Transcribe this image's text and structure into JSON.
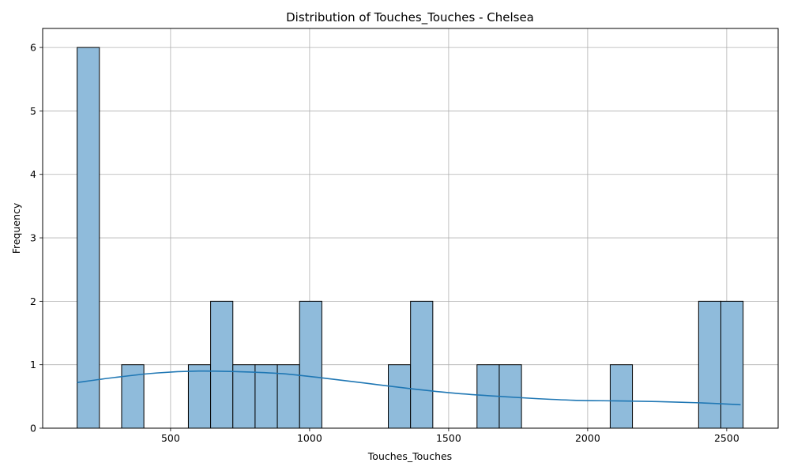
{
  "chart_data": {
    "type": "histogram",
    "title": "Distribution of Touches_Touches - Chelsea",
    "xlabel": "Touches_Touches",
    "ylabel": "Frequency",
    "xlim": [
      40,
      2685
    ],
    "ylim": [
      0,
      6.3
    ],
    "x_ticks": [
      500,
      1000,
      1500,
      2000,
      2500
    ],
    "y_ticks": [
      0,
      1,
      2,
      3,
      4,
      5,
      6
    ],
    "grid": true,
    "bins": [
      {
        "x0": 164,
        "x1": 244,
        "count": 6
      },
      {
        "x0": 324,
        "x1": 404,
        "count": 1
      },
      {
        "x0": 564,
        "x1": 644,
        "count": 1
      },
      {
        "x0": 644,
        "x1": 724,
        "count": 2
      },
      {
        "x0": 724,
        "x1": 804,
        "count": 1
      },
      {
        "x0": 804,
        "x1": 884,
        "count": 1
      },
      {
        "x0": 884,
        "x1": 964,
        "count": 1
      },
      {
        "x0": 964,
        "x1": 1044,
        "count": 2
      },
      {
        "x0": 1283,
        "x1": 1363,
        "count": 1
      },
      {
        "x0": 1363,
        "x1": 1443,
        "count": 2
      },
      {
        "x0": 1602,
        "x1": 1682,
        "count": 1
      },
      {
        "x0": 1682,
        "x1": 1762,
        "count": 1
      },
      {
        "x0": 2081,
        "x1": 2161,
        "count": 1
      },
      {
        "x0": 2399,
        "x1": 2479,
        "count": 2
      },
      {
        "x0": 2479,
        "x1": 2559,
        "count": 2
      }
    ],
    "kde": {
      "x": [
        164,
        300,
        450,
        600,
        750,
        900,
        1050,
        1200,
        1350,
        1500,
        1650,
        1800,
        1950,
        2100,
        2250,
        2400,
        2550
      ],
      "y": [
        0.72,
        0.8,
        0.87,
        0.9,
        0.89,
        0.86,
        0.79,
        0.71,
        0.63,
        0.56,
        0.51,
        0.47,
        0.44,
        0.43,
        0.42,
        0.4,
        0.37
      ]
    },
    "colors": {
      "bar_fill": "#8fbbdb",
      "bar_edge": "#000000",
      "kde_line": "#1f77b4",
      "grid": "#b0b0b0"
    }
  }
}
